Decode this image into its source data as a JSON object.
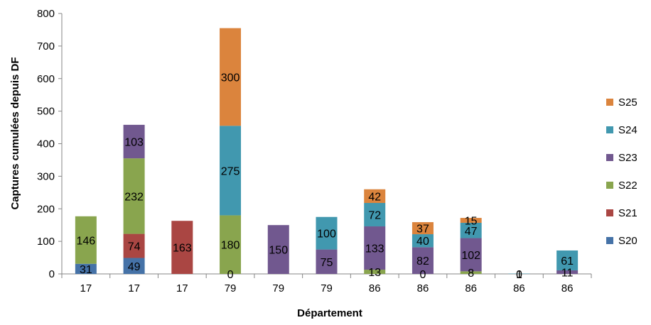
{
  "chart_data": {
    "type": "bar",
    "stacked": true,
    "categories": [
      "17",
      "17",
      "17",
      "79",
      "79",
      "79",
      "86",
      "86",
      "86",
      "86",
      "86"
    ],
    "series": [
      {
        "name": "S20",
        "color": "#4572A7",
        "values": [
          31,
          49,
          0,
          0,
          0,
          0,
          0,
          0,
          0,
          0,
          0
        ]
      },
      {
        "name": "S21",
        "color": "#AA4643",
        "values": [
          0,
          74,
          163,
          0,
          0,
          0,
          0,
          0,
          0,
          0,
          0
        ]
      },
      {
        "name": "S22",
        "color": "#89A54E",
        "values": [
          146,
          232,
          0,
          180,
          0,
          0,
          13,
          0,
          8,
          0,
          0
        ]
      },
      {
        "name": "S23",
        "color": "#71588F",
        "values": [
          0,
          103,
          0,
          0,
          150,
          75,
          133,
          82,
          102,
          0,
          11
        ]
      },
      {
        "name": "S24",
        "color": "#4198AF",
        "values": [
          0,
          0,
          0,
          275,
          0,
          100,
          72,
          40,
          47,
          1,
          61
        ]
      },
      {
        "name": "S25",
        "color": "#DB843D",
        "values": [
          0,
          0,
          0,
          300,
          0,
          0,
          42,
          37,
          15,
          0,
          0
        ]
      }
    ],
    "data_labels": [
      {
        "series": "S20",
        "index": 0,
        "text": "31"
      },
      {
        "series": "S22",
        "index": 0,
        "text": "146"
      },
      {
        "series": "S20",
        "index": 1,
        "text": "49"
      },
      {
        "series": "S21",
        "index": 1,
        "text": "74"
      },
      {
        "series": "S22",
        "index": 1,
        "text": "232"
      },
      {
        "series": "S23",
        "index": 1,
        "text": "103"
      },
      {
        "series": "S21",
        "index": 2,
        "text": "163"
      },
      {
        "series": "S20",
        "index": 3,
        "text": "0"
      },
      {
        "series": "S22",
        "index": 3,
        "text": "180"
      },
      {
        "series": "S24",
        "index": 3,
        "text": "275"
      },
      {
        "series": "S25",
        "index": 3,
        "text": "300"
      },
      {
        "series": "S23",
        "index": 4,
        "text": "150"
      },
      {
        "series": "S23",
        "index": 5,
        "text": "75"
      },
      {
        "series": "S24",
        "index": 5,
        "text": "100"
      },
      {
        "series": "S22",
        "index": 6,
        "text": "13"
      },
      {
        "series": "S23",
        "index": 6,
        "text": "133"
      },
      {
        "series": "S24",
        "index": 6,
        "text": "72"
      },
      {
        "series": "S25",
        "index": 6,
        "text": "42"
      },
      {
        "series": "S20",
        "index": 7,
        "text": "0"
      },
      {
        "series": "S23",
        "index": 7,
        "text": "82"
      },
      {
        "series": "S24",
        "index": 7,
        "text": "40"
      },
      {
        "series": "S25",
        "index": 7,
        "text": "37"
      },
      {
        "series": "S22",
        "index": 8,
        "text": "8"
      },
      {
        "series": "S23",
        "index": 8,
        "text": "102"
      },
      {
        "series": "S24",
        "index": 8,
        "text": "47"
      },
      {
        "series": "S25",
        "index": 8,
        "text": "15"
      },
      {
        "series": "S20",
        "index": 9,
        "text": "0"
      },
      {
        "series": "S24",
        "index": 9,
        "text": "1"
      },
      {
        "series": "S23",
        "index": 10,
        "text": "11"
      },
      {
        "series": "S24",
        "index": 10,
        "text": "61"
      }
    ],
    "title": "",
    "xlabel": "Département",
    "ylabel": "Captures cumulées depuis DF",
    "ylim": [
      0,
      800
    ],
    "yticks": [
      0,
      100,
      200,
      300,
      400,
      500,
      600,
      700,
      800
    ],
    "grid": false,
    "legend": "right",
    "legend_order": [
      "S25",
      "S24",
      "S23",
      "S22",
      "S21",
      "S20"
    ]
  }
}
